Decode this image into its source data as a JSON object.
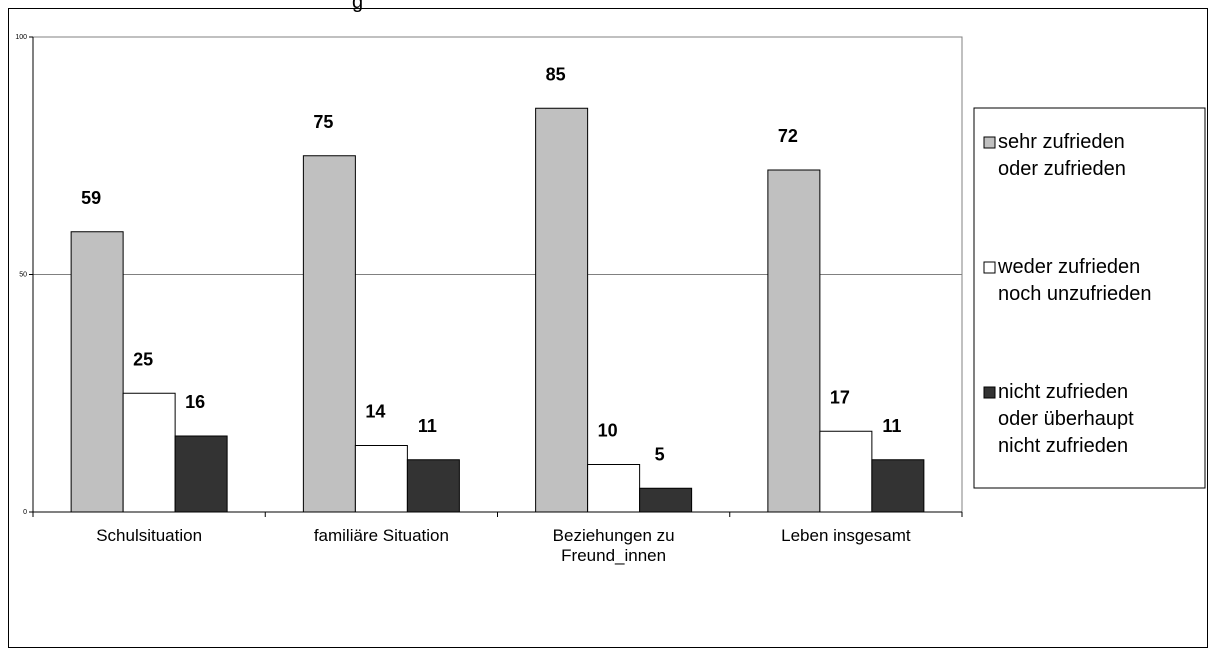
{
  "chart_data": {
    "type": "bar",
    "title_fragment": "g",
    "categories": [
      [
        "Schulsituation"
      ],
      [
        "familiäre Situation"
      ],
      [
        "Beziehungen zu",
        "Freund_innen"
      ],
      [
        "Leben insgesamt"
      ]
    ],
    "series": [
      {
        "name": [
          "sehr zufrieden",
          "oder zufrieden"
        ],
        "values": [
          59,
          75,
          85,
          72
        ]
      },
      {
        "name": [
          "weder zufrieden",
          "noch unzufrieden"
        ],
        "values": [
          25,
          14,
          10,
          17
        ]
      },
      {
        "name": [
          "nicht zufrieden",
          "oder überhaupt",
          "nicht zufrieden"
        ],
        "values": [
          16,
          11,
          5,
          11
        ]
      }
    ],
    "yticks": [
      0,
      50,
      100
    ],
    "ylim": [
      0,
      100
    ],
    "grid": true,
    "legend": "right",
    "colors": [
      "#c0c0c0",
      "#ffffff",
      "#333333"
    ]
  }
}
